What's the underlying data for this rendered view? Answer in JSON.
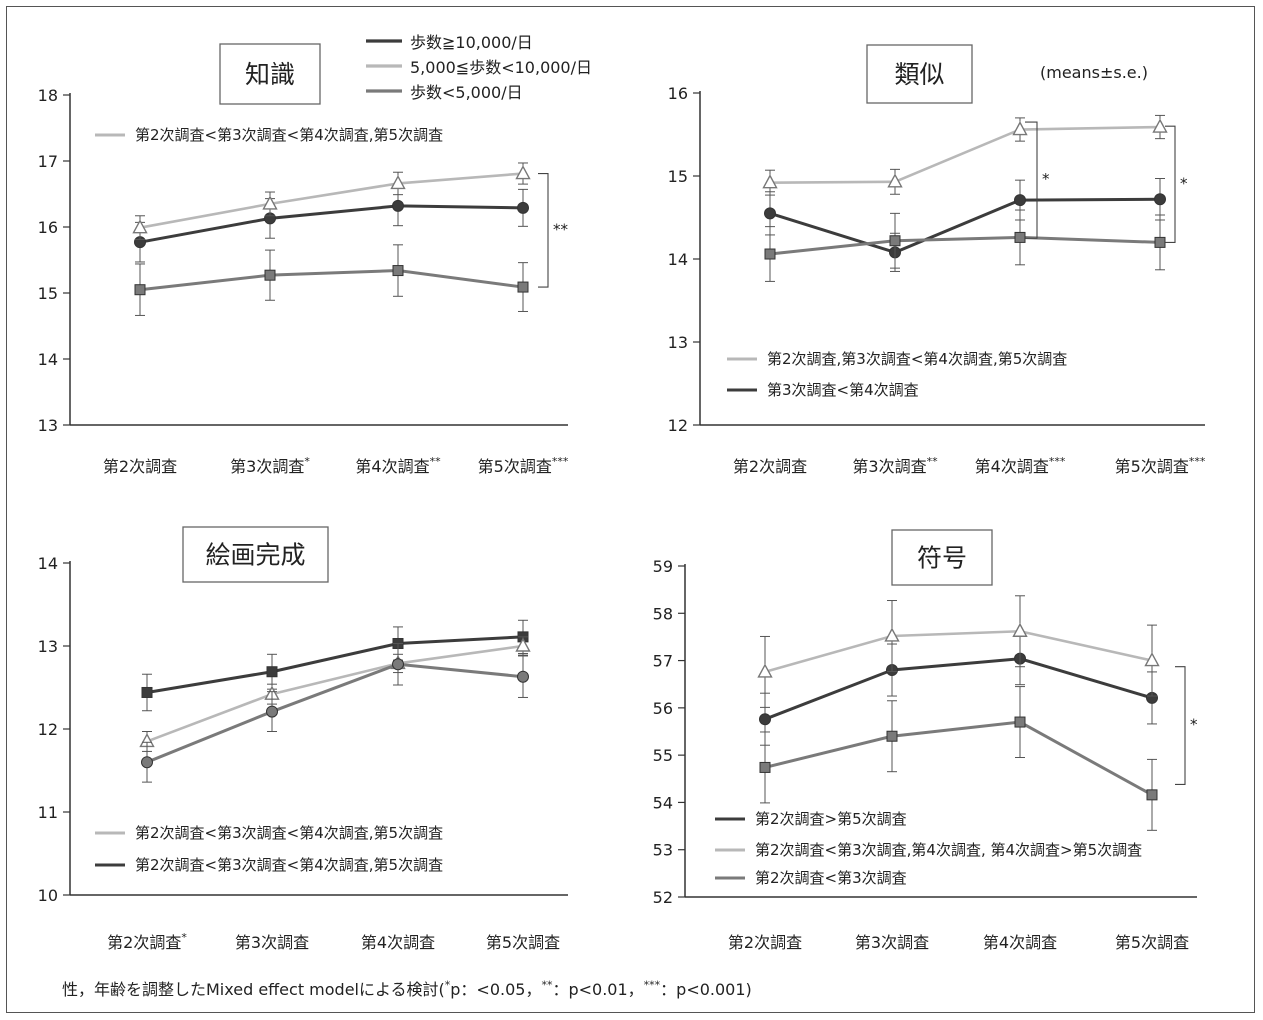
{
  "common": {
    "x_categories": [
      "第2次調査",
      "第3次調査",
      "第4次調査",
      "第5次調査"
    ],
    "legend": {
      "items": [
        {
          "label": "歩数≧10,000/日",
          "series": "high"
        },
        {
          "label": "5,000≦歩数<10,000/日",
          "series": "mid"
        },
        {
          "label": "歩数<5,000/日",
          "series": "low"
        }
      ]
    },
    "means_note": "(means±s.e.)",
    "footnote": {
      "main": "性，年齢を調整したMixed effect modelによる検討(",
      "s1": "*",
      "t1": "p：<0.05，",
      "s2": "**",
      "t2": "：p<0.01，",
      "s3": "***",
      "t3": "：p<0.001)"
    },
    "colors": {
      "high": "#3c3c3c",
      "mid": "#b8b8b8",
      "low": "#7a7a7a"
    }
  },
  "chart_data": [
    {
      "type": "line",
      "title": "知識",
      "ylim": [
        13,
        18
      ],
      "yticks": [
        "13",
        "14",
        "15",
        "16",
        "17",
        "18"
      ],
      "x_suffix": [
        "",
        "*",
        "**",
        "***"
      ],
      "series": [
        {
          "name": "歩数≧10,000/日",
          "key": "high",
          "marker": "circle",
          "values": [
            15.77,
            16.13,
            16.32,
            16.29
          ],
          "se": [
            0.3,
            0.3,
            0.3,
            0.28
          ]
        },
        {
          "name": "5,000≦歩数<10,000/日",
          "key": "mid",
          "marker": "triangle",
          "values": [
            15.99,
            16.35,
            16.66,
            16.81
          ],
          "se": [
            0.18,
            0.18,
            0.17,
            0.16
          ]
        },
        {
          "name": "歩数<5,000/日",
          "key": "low",
          "marker": "square",
          "values": [
            15.05,
            15.27,
            15.34,
            15.09
          ],
          "se": [
            0.39,
            0.38,
            0.39,
            0.37
          ]
        }
      ],
      "significance": [
        {
          "label": "**",
          "y1": 16.81,
          "y2": 15.09
        }
      ],
      "notes": [
        {
          "label": "第2次調査<第3次調査<第4次調査,第5次調査",
          "series": "mid"
        }
      ]
    },
    {
      "type": "line",
      "title": "類似",
      "ylim": [
        12,
        16
      ],
      "yticks": [
        "12",
        "13",
        "14",
        "15",
        "16"
      ],
      "x_suffix": [
        "",
        "**",
        "***",
        "***"
      ],
      "series": [
        {
          "name": "歩数≧10,000/日",
          "key": "high",
          "marker": "circle",
          "values": [
            14.55,
            14.08,
            14.71,
            14.72
          ],
          "se": [
            0.26,
            0.23,
            0.24,
            0.25
          ]
        },
        {
          "name": "5,000≦歩数<10,000/日",
          "key": "mid",
          "marker": "triangle",
          "values": [
            14.92,
            14.93,
            15.56,
            15.59
          ],
          "se": [
            0.15,
            0.15,
            0.14,
            0.14
          ]
        },
        {
          "name": "歩数<5,000/日",
          "key": "low",
          "marker": "square",
          "values": [
            14.06,
            14.22,
            14.26,
            14.2
          ],
          "se": [
            0.33,
            0.33,
            0.33,
            0.33
          ]
        }
      ],
      "significance": [
        {
          "label": "*",
          "y1": 15.65,
          "y2": 14.25,
          "col": 2
        },
        {
          "label": "*",
          "y1": 15.6,
          "y2": 14.2
        }
      ],
      "notes": [
        {
          "label": "第2次調査,第3次調査<第4次調査,第5次調査",
          "series": "mid"
        },
        {
          "label": "第3次調査<第4次調査",
          "series": "high"
        }
      ]
    },
    {
      "type": "line",
      "title": "絵画完成",
      "ylim": [
        10,
        14
      ],
      "yticks": [
        "10",
        "11",
        "12",
        "13",
        "14"
      ],
      "x_suffix": [
        "*",
        "",
        "",
        ""
      ],
      "series": [
        {
          "name": "歩数≧10,000/日",
          "key": "high",
          "marker": "square",
          "values": [
            12.44,
            12.69,
            13.03,
            13.11
          ],
          "se": [
            0.22,
            0.21,
            0.2,
            0.2
          ]
        },
        {
          "name": "5,000≦歩数<10,000/日",
          "key": "mid",
          "marker": "triangle",
          "values": [
            11.85,
            12.42,
            12.79,
            13.0
          ],
          "se": [
            0.12,
            0.12,
            0.11,
            0.11
          ]
        },
        {
          "name": "歩数<5,000/日",
          "key": "low",
          "marker": "circle",
          "values": [
            11.6,
            12.21,
            12.78,
            12.63
          ],
          "se": [
            0.24,
            0.24,
            0.25,
            0.25
          ]
        }
      ],
      "significance": [],
      "notes": [
        {
          "label": "第2次調査<第3次調査<第4次調査,第5次調査",
          "series": "mid"
        },
        {
          "label": "第2次調査<第3次調査<第4次調査,第5次調査",
          "series": "high"
        }
      ]
    },
    {
      "type": "line",
      "title": "符号",
      "ylim": [
        52,
        59
      ],
      "yticks": [
        "52",
        "53",
        "54",
        "55",
        "56",
        "57",
        "58",
        "59"
      ],
      "x_suffix": [
        "",
        "",
        "",
        ""
      ],
      "series": [
        {
          "name": "歩数≧10,000/日",
          "key": "high",
          "marker": "circle",
          "values": [
            55.76,
            56.8,
            57.04,
            56.21
          ],
          "se": [
            0.55,
            0.55,
            0.55,
            0.55
          ]
        },
        {
          "name": "5,000≦歩数<10,000/日",
          "key": "mid",
          "marker": "triangle",
          "values": [
            56.76,
            57.52,
            57.62,
            57.0
          ],
          "se": [
            0.75,
            0.75,
            0.75,
            0.75
          ]
        },
        {
          "name": "歩数<5,000/日",
          "key": "low",
          "marker": "square",
          "values": [
            54.74,
            55.4,
            55.7,
            54.16
          ],
          "se": [
            0.75,
            0.75,
            0.75,
            0.75
          ]
        }
      ],
      "significance": [
        {
          "label": "*",
          "y1": 56.87,
          "y2": 54.38
        }
      ],
      "notes": [
        {
          "label": "第2次調査>第5次調査",
          "series": "high"
        },
        {
          "label": "第2次調査<第3次調査,第4次調査, 第4次調査>第5次調査",
          "series": "mid"
        },
        {
          "label": "第2次調査<第3次調査",
          "series": "low"
        }
      ]
    }
  ]
}
